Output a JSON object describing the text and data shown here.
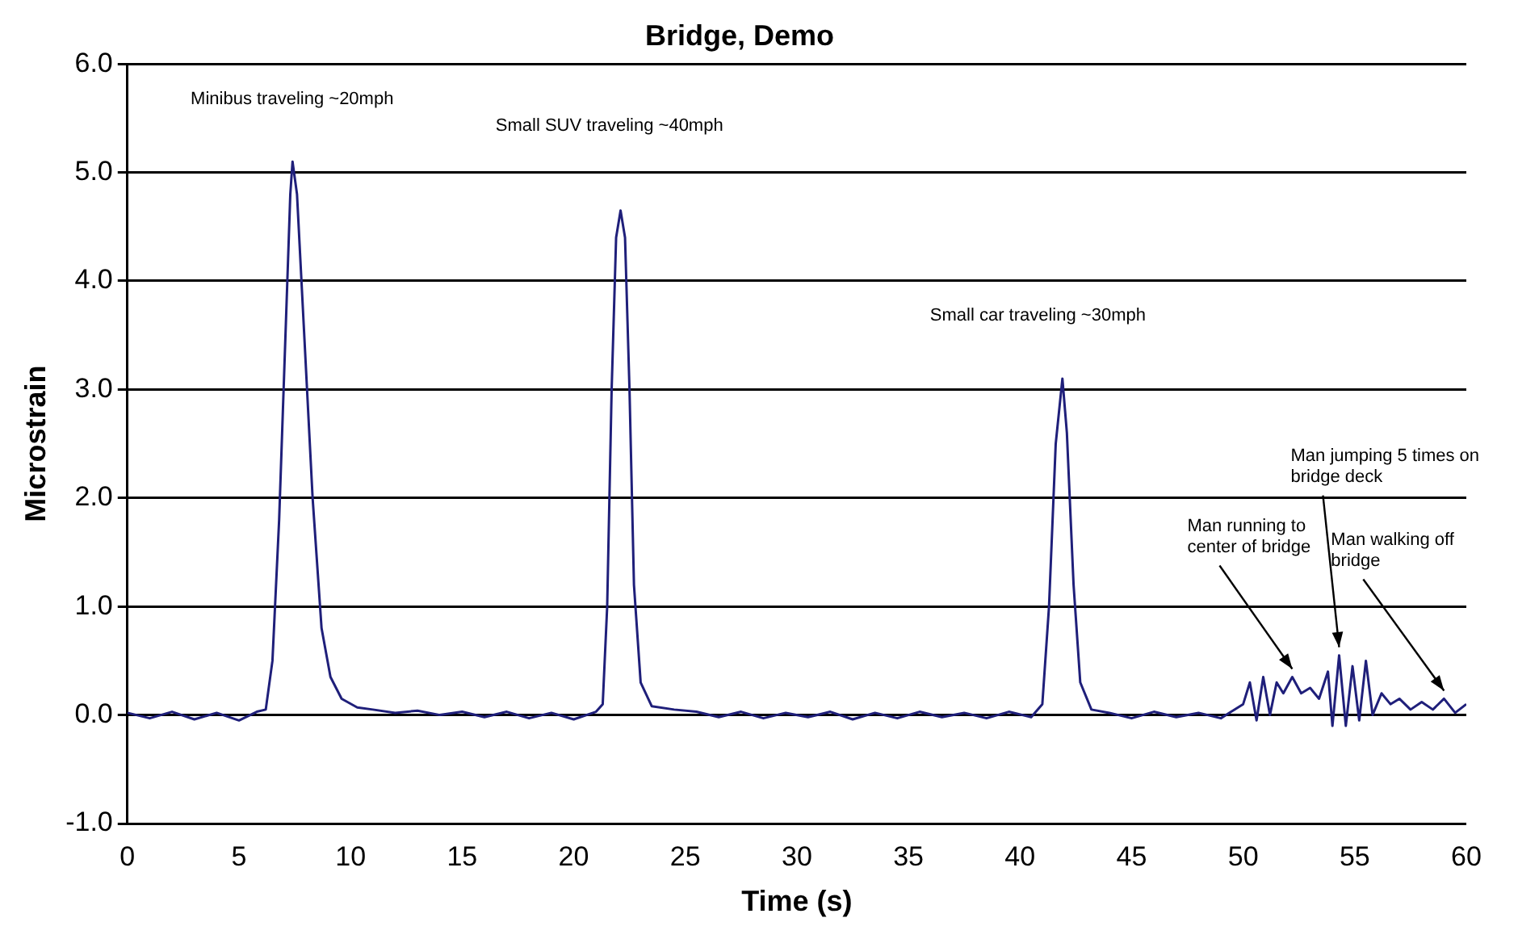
{
  "chart_data": {
    "type": "line",
    "title": "Bridge, Demo",
    "xlabel": "Time (s)",
    "ylabel": "Microstrain",
    "xlim": [
      0,
      60
    ],
    "xticks": [
      0,
      5,
      10,
      15,
      20,
      25,
      30,
      35,
      40,
      45,
      50,
      55,
      60
    ],
    "ylim": [
      -1,
      6
    ],
    "yticks": [
      {
        "value": -1,
        "label": "-1.0"
      },
      {
        "value": 0,
        "label": "0.0"
      },
      {
        "value": 1,
        "label": "1.0"
      },
      {
        "value": 2,
        "label": "2.0"
      },
      {
        "value": 3,
        "label": "3.0"
      },
      {
        "value": 4,
        "label": "4.0"
      },
      {
        "value": 5,
        "label": "5.0"
      },
      {
        "value": 6,
        "label": "6.0"
      }
    ],
    "grid": "y",
    "marker": "none",
    "line_style": "solid",
    "annotations": [
      "Minibus traveling ~20mph",
      "Small SUV traveling ~40mph",
      "Small car traveling ~30mph",
      {
        "text": "Man running to center of bridge",
        "x": 52.2,
        "y": 0.35
      },
      {
        "text": "Man jumping 5 times on bridge deck",
        "x": 54.3,
        "y": 0.55
      },
      {
        "text": "Man walking off bridge",
        "x": 59,
        "y": 0.15
      }
    ],
    "series": [
      {
        "color": "#1f1f7a",
        "x": [
          0,
          1,
          2,
          3,
          4,
          5,
          5.8,
          6.2,
          6.5,
          6.8,
          7.1,
          7.3,
          7.4,
          7.6,
          7.9,
          8.3,
          8.7,
          9.1,
          9.6,
          10.3,
          11,
          12,
          13,
          14,
          15,
          16,
          17,
          18,
          19,
          20,
          21,
          21.3,
          21.5,
          21.7,
          21.9,
          22.1,
          22.3,
          22.5,
          22.7,
          23,
          23.5,
          24.5,
          25.5,
          26.5,
          27.5,
          28.5,
          29.5,
          30.5,
          31.5,
          32.5,
          33.5,
          34.5,
          35.5,
          36.5,
          37.5,
          38.5,
          39.5,
          40.5,
          41,
          41.3,
          41.6,
          41.9,
          42.1,
          42.4,
          42.7,
          43.2,
          44,
          45,
          46,
          47,
          48,
          49,
          50,
          50.3,
          50.6,
          50.9,
          51.2,
          51.5,
          51.8,
          52.2,
          52.6,
          53,
          53.4,
          53.8,
          54,
          54.3,
          54.6,
          54.9,
          55.2,
          55.5,
          55.8,
          56.2,
          56.6,
          57,
          57.5,
          58,
          58.5,
          59,
          59.5,
          60
        ],
        "values": [
          0.02,
          -0.03,
          0.03,
          -0.04,
          0.02,
          -0.05,
          0.03,
          0.05,
          0.5,
          1.8,
          3.6,
          4.8,
          5.1,
          4.8,
          3.6,
          2,
          0.8,
          0.35,
          0.15,
          0.07,
          0.05,
          0.02,
          0.04,
          0,
          0.03,
          -0.02,
          0.03,
          -0.03,
          0.02,
          -0.04,
          0.03,
          0.1,
          1,
          3,
          4.4,
          4.65,
          4.4,
          3,
          1.2,
          0.3,
          0.08,
          0.05,
          0.03,
          -0.02,
          0.03,
          -0.03,
          0.02,
          -0.02,
          0.03,
          -0.04,
          0.02,
          -0.03,
          0.03,
          -0.02,
          0.02,
          -0.03,
          0.03,
          -0.02,
          0.1,
          1,
          2.5,
          3.1,
          2.6,
          1.2,
          0.3,
          0.05,
          0.02,
          -0.03,
          0.03,
          -0.02,
          0.02,
          -0.03,
          0.1,
          0.3,
          -0.05,
          0.35,
          0,
          0.3,
          0.2,
          0.35,
          0.2,
          0.25,
          0.15,
          0.4,
          -0.1,
          0.55,
          -0.1,
          0.45,
          -0.05,
          0.5,
          0,
          0.2,
          0.1,
          0.15,
          0.05,
          0.12,
          0.05,
          0.15,
          0.02,
          0.1
        ]
      }
    ]
  }
}
